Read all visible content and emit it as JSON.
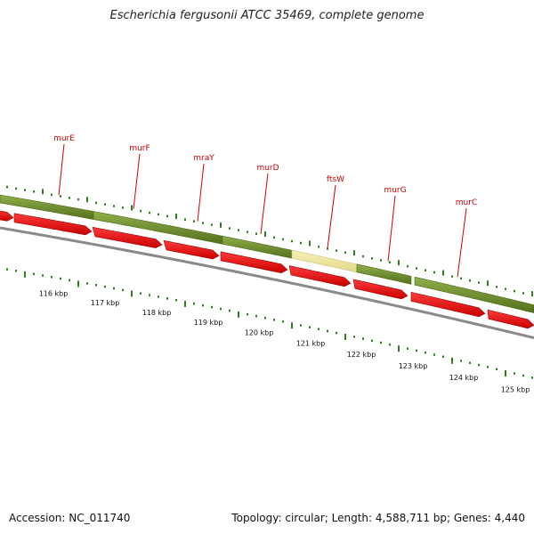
{
  "title": "Escherichia fergusonii ATCC 35469, complete genome",
  "footer": {
    "accession": "Accession: NC_011740",
    "summary": "Topology: circular; Length: 4,588,711 bp; Genes: 4,440"
  },
  "kbp_labels": [
    "116 kbp",
    "117 kbp",
    "118 kbp",
    "119 kbp",
    "120 kbp",
    "121 kbp",
    "122 kbp",
    "123 kbp",
    "124 kbp",
    "125 kbp"
  ],
  "gene_labels": [
    "murE",
    "murF",
    "mraY",
    "murD",
    "ftsW",
    "murG",
    "murC"
  ],
  "colors": {
    "gene_label": "#cc0000",
    "cds_red": "#e00000",
    "gene_band": "#6b8a2a",
    "highlight_band": "#efe6a0",
    "backbone": "#888888",
    "tick": "#2f7f1f"
  }
}
